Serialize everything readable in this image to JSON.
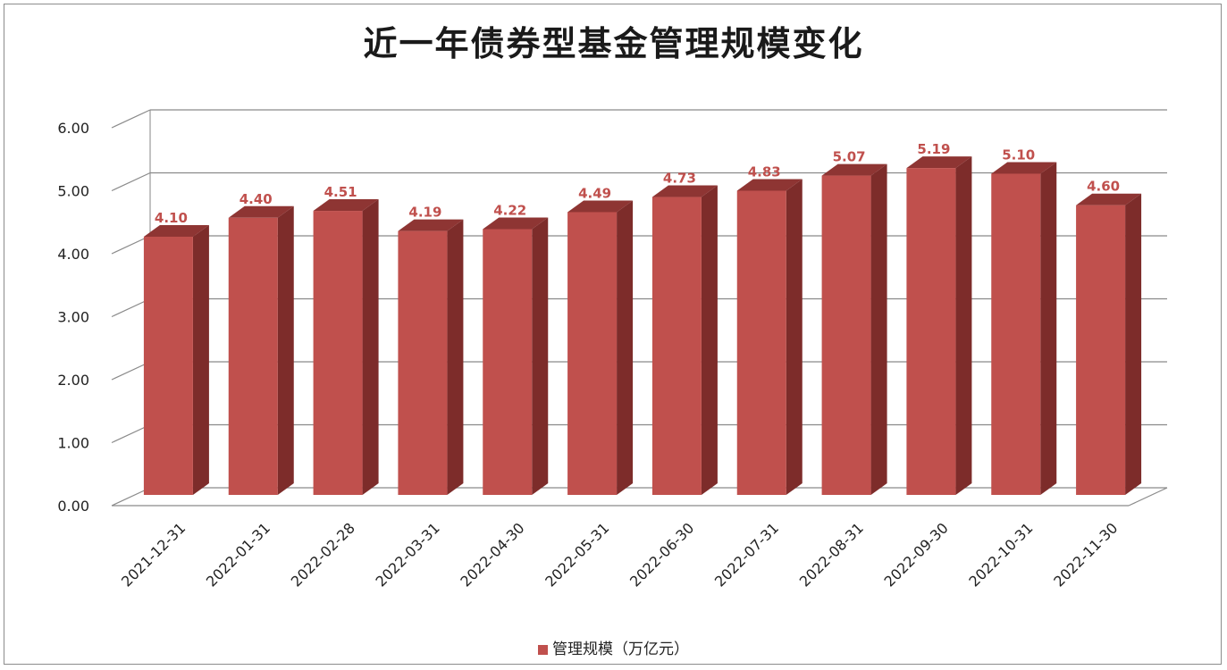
{
  "chart_data": {
    "type": "bar",
    "title": "近一年债券型基金管理规模变化",
    "categories": [
      "2021-12-31",
      "2022-01-31",
      "2022-02-28",
      "2022-03-31",
      "2022-04-30",
      "2022-05-31",
      "2022-06-30",
      "2022-07-31",
      "2022-08-31",
      "2022-09-30",
      "2022-10-31",
      "2022-11-30"
    ],
    "series": [
      {
        "name": "管理规模（万亿元）",
        "values": [
          4.1,
          4.4,
          4.51,
          4.19,
          4.22,
          4.49,
          4.73,
          4.83,
          5.07,
          5.19,
          5.1,
          4.6
        ]
      }
    ],
    "y_ticks": [
      "0.00",
      "1.00",
      "2.00",
      "3.00",
      "4.00",
      "5.00",
      "6.00"
    ],
    "ylim": [
      0,
      6
    ],
    "legend_position": "bottom",
    "grid": true,
    "colors": {
      "bar_front": "#c0504d",
      "bar_side": "#7d2c2a",
      "bar_top": "#8e3533",
      "label": "#c0504d"
    }
  }
}
